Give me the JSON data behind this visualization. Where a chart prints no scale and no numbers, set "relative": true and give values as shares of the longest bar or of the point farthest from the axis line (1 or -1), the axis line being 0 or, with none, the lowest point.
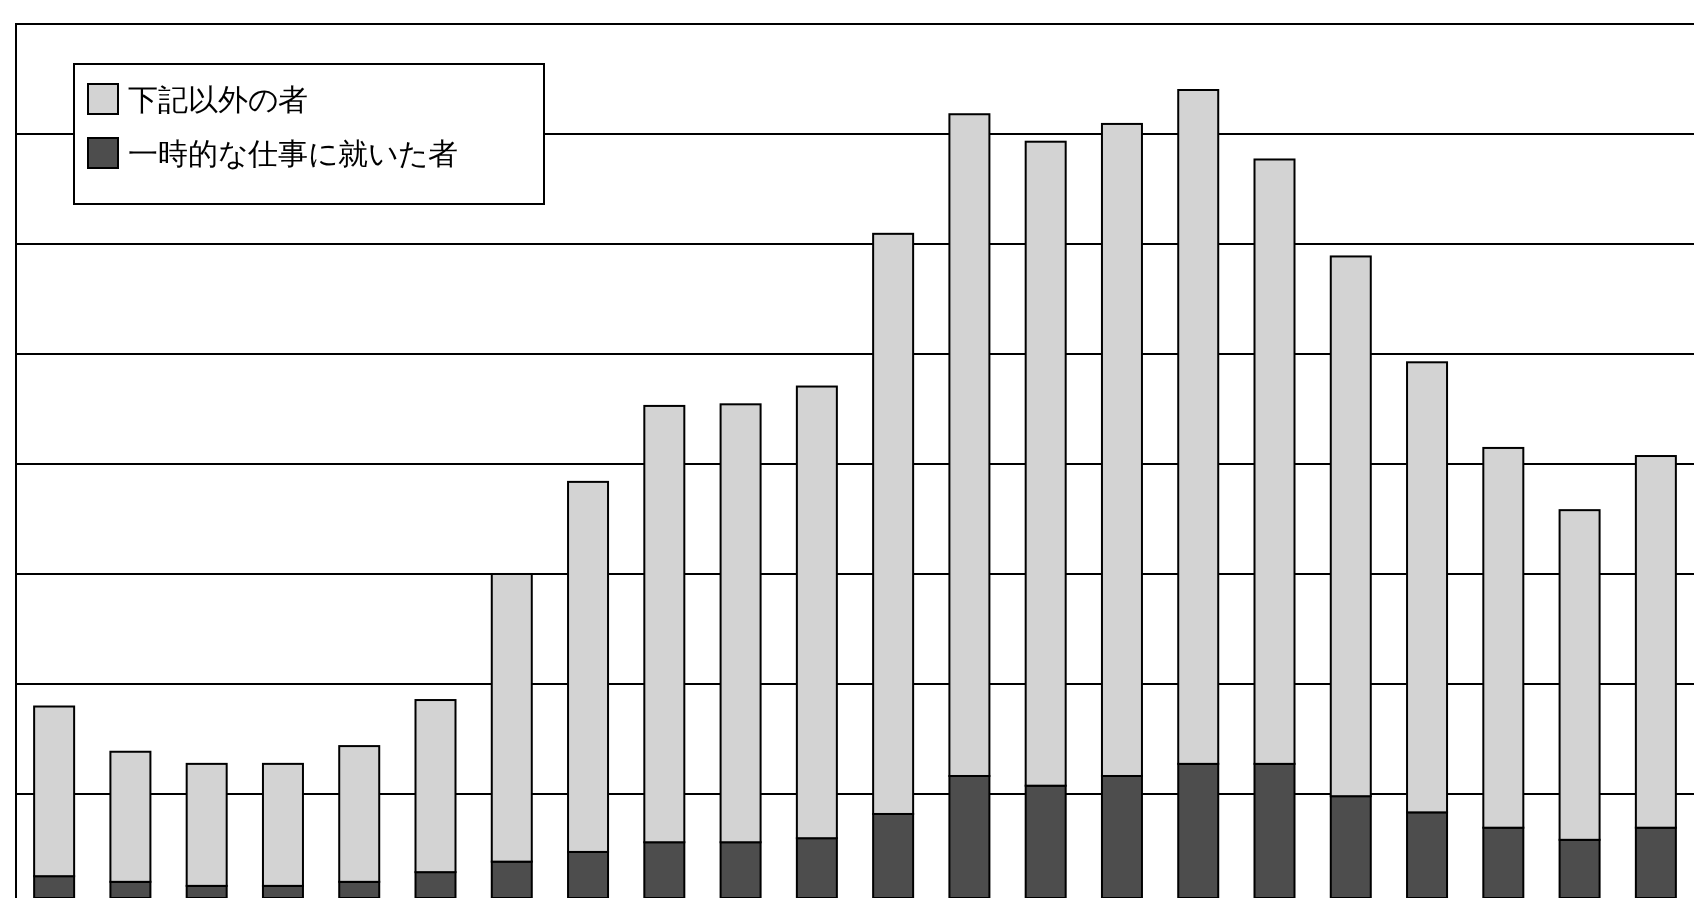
{
  "chart_data": {
    "type": "bar",
    "stacked": true,
    "relative": true,
    "grid": "y",
    "legend": "top left",
    "categories": [
      null,
      null,
      null,
      null,
      null,
      null,
      null,
      null,
      null,
      null,
      null,
      null,
      null,
      null,
      null,
      null,
      null,
      null,
      null,
      null,
      null,
      null
    ],
    "series": [
      {
        "name": "一時的な仕事に就いた者",
        "color": "#4d4d4d",
        "values": [
          0.027,
          0.02,
          0.015,
          0.015,
          0.02,
          0.032,
          0.045,
          0.057,
          0.069,
          0.069,
          0.074,
          0.104,
          0.151,
          0.139,
          0.151,
          0.166,
          0.166,
          0.126,
          0.106,
          0.087,
          0.072,
          0.087
        ]
      },
      {
        "name": "下記以外の者",
        "color": "#d3d3d3",
        "values": [
          0.21,
          0.161,
          0.151,
          0.151,
          0.168,
          0.213,
          0.356,
          0.458,
          0.54,
          0.542,
          0.559,
          0.718,
          0.819,
          0.797,
          0.807,
          0.834,
          0.748,
          0.668,
          0.557,
          0.47,
          0.408,
          0.46
        ]
      }
    ]
  }
}
